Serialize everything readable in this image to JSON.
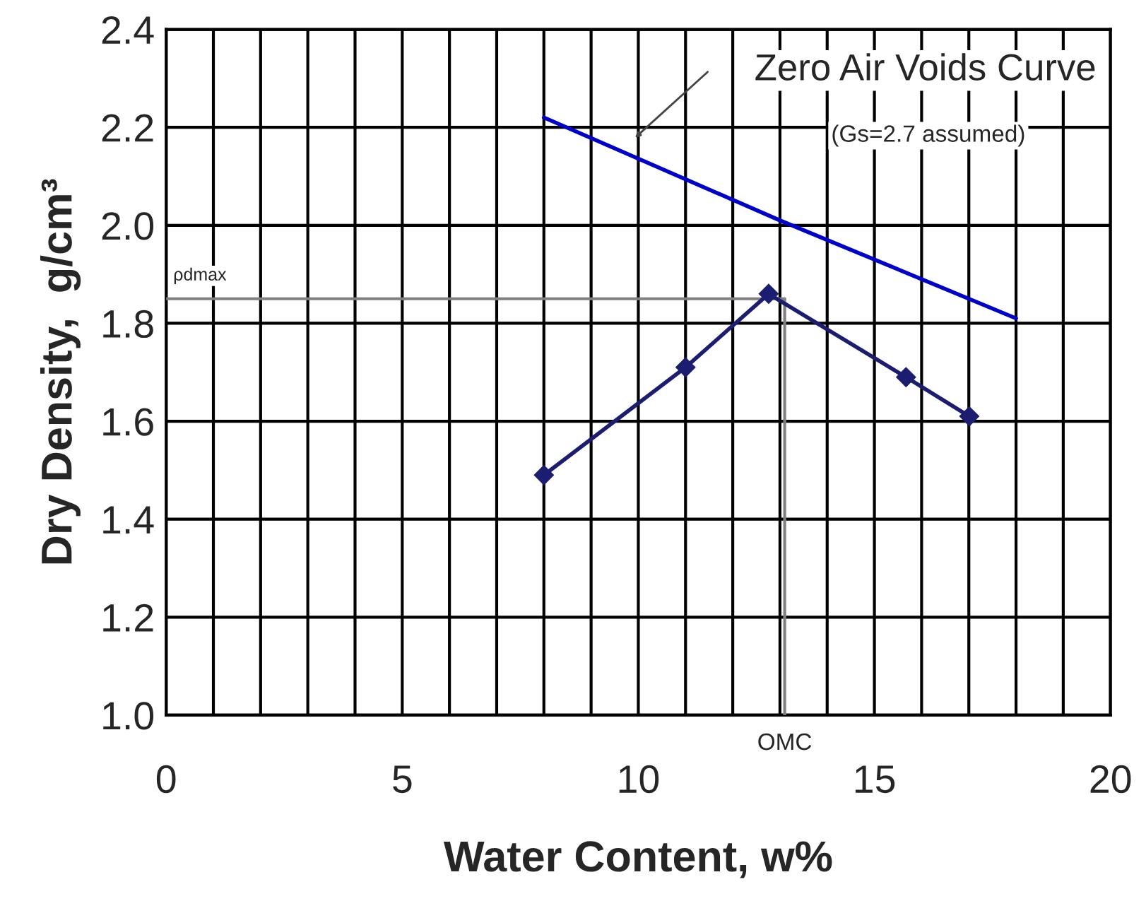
{
  "chart_data": {
    "type": "line",
    "xlabel": "Water Content, w%",
    "ylabel": "Dry Density,  g/cm³",
    "xlim": [
      0,
      20
    ],
    "xticks": [
      0,
      5,
      10,
      15,
      20
    ],
    "ylim": [
      1.0,
      2.4
    ],
    "yticks": [
      {
        "value": 1.0,
        "label": "1.0"
      },
      1.2,
      1.4,
      1.6,
      1.8,
      {
        "value": 2.0,
        "label": "2.0"
      },
      2.2,
      2.4
    ],
    "grid": true,
    "series": [
      {
        "x": [
          8.0,
          11.0,
          12.76,
          15.67,
          17.01
        ],
        "values": [
          1.49,
          1.71,
          1.86,
          1.69,
          1.61
        ],
        "color": "#1c1c70",
        "marker": "diamond"
      },
      {
        "x": [
          8.0,
          13.0,
          18.0
        ],
        "values": [
          2.22,
          2.01,
          1.81
        ],
        "color": "#0000cc",
        "marker": "none"
      }
    ],
    "ref_lines": [
      {
        "axis": "y",
        "value": 1.85,
        "label": "ρdmax",
        "color": "#808080"
      },
      {
        "axis": "x",
        "value": 13.1,
        "label": "OMC",
        "color": "#808080"
      }
    ],
    "annotations": [
      "Zero Air Voids Curve",
      "(Gs=2.7 assumed)"
    ]
  }
}
